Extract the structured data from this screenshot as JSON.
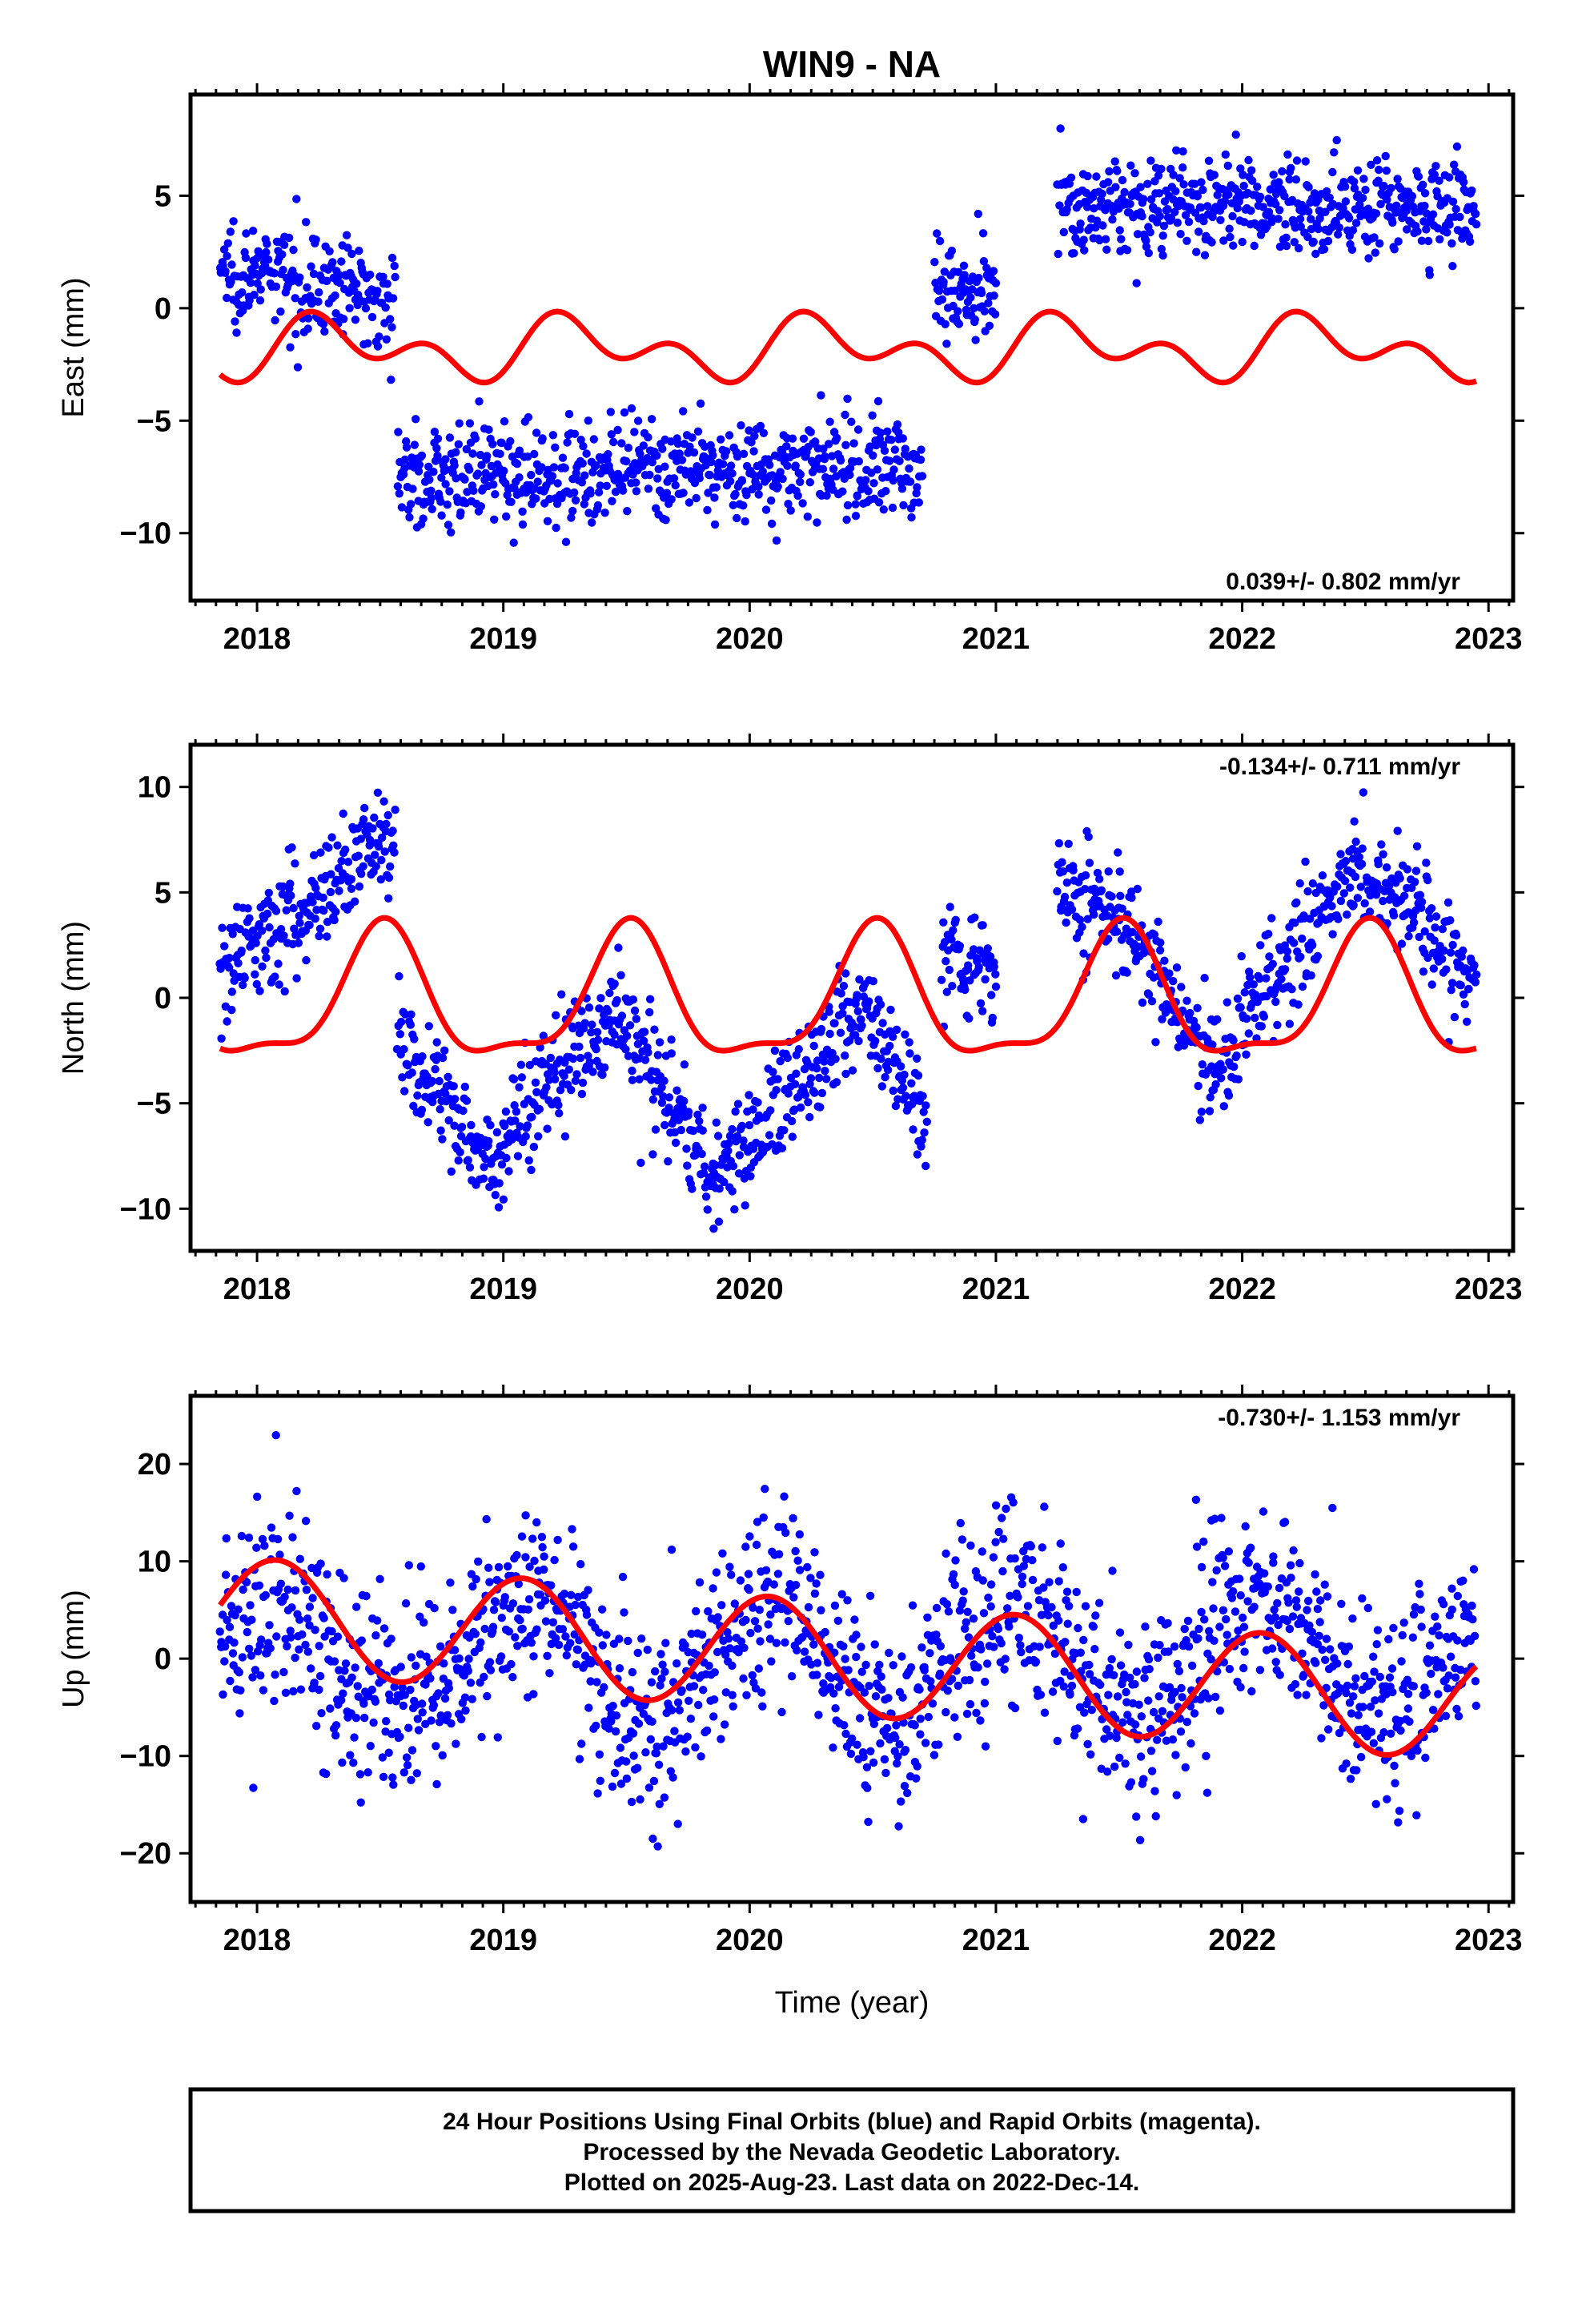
{
  "figure": {
    "title": "WIN9 - NA",
    "xlabel": "Time (year)",
    "caption": [
      "24 Hour Positions Using Final Orbits (blue) and Rapid Orbits (magenta).",
      "Processed by the Nevada Geodetic Laboratory.",
      "Plotted on 2025-Aug-23. Last data on 2022-Dec-14."
    ],
    "colors": {
      "final_orbits": "#0000ff",
      "model_fit": "#ff0000",
      "frame": "#000000"
    }
  },
  "chart_data": [
    {
      "type": "scatter",
      "panel": "east",
      "ylabel": "East (mm)",
      "rate": "0.039+/- 0.802 mm/yr",
      "rate_placement": "bottom-right",
      "xlim": [
        2017.73,
        2023.1
      ],
      "ylim": [
        -13,
        9.5
      ],
      "xticks": [
        2018,
        2019,
        2020,
        2021,
        2022,
        2023
      ],
      "yticks": [
        -10,
        -5,
        0,
        5
      ],
      "grid": false,
      "data_range": [
        2017.85,
        2022.95
      ],
      "segments": [
        {
          "x": [
            2017.85,
            2018.56
          ],
          "y": [
            1.8,
            0.5
          ]
        },
        {
          "x": [
            2018.57,
            2020.7
          ],
          "y": [
            -7.5,
            -7.0
          ]
        },
        {
          "x": [
            2020.75,
            2021.0
          ],
          "y": [
            0.8,
            1.0
          ]
        },
        {
          "x": [
            2021.25,
            2022.95
          ],
          "y": [
            4.5,
            4.5
          ]
        }
      ],
      "seasonal_fit": {
        "mean": -1.8,
        "annual_amp": 0.9,
        "annual_phase": 1.9,
        "semiannual_amp": 0.9,
        "semiannual_phase": 2.5
      },
      "series": [
        {
          "name": "Final Orbits (blue)",
          "role": "daily positions",
          "color": "#0000ff"
        },
        {
          "name": "",
          "role": "seasonal model",
          "color": "#ff0000"
        }
      ]
    },
    {
      "type": "scatter",
      "panel": "north",
      "ylabel": "North (mm)",
      "rate": "-0.134+/- 0.711 mm/yr",
      "rate_placement": "top-right",
      "xlim": [
        2017.73,
        2023.1
      ],
      "ylim": [
        -12,
        12
      ],
      "xticks": [
        2018,
        2019,
        2020,
        2021,
        2022,
        2023
      ],
      "yticks": [
        -10,
        -5,
        0,
        5,
        10
      ],
      "grid": false,
      "data_range": [
        2017.85,
        2022.95
      ],
      "segments": [
        {
          "x": [
            2017.85,
            2018.56
          ],
          "y": [
            1.5,
            8.0
          ]
        },
        {
          "x": [
            2018.57,
            2019.0
          ],
          "y": [
            -2.0,
            -8.5
          ]
        },
        {
          "x": [
            2019.0,
            2019.45
          ],
          "y": [
            -6.5,
            -0.5
          ]
        },
        {
          "x": [
            2019.45,
            2019.85
          ],
          "y": [
            -0.5,
            -8.5
          ]
        },
        {
          "x": [
            2019.85,
            2020.45
          ],
          "y": [
            -8.5,
            -0.5
          ]
        },
        {
          "x": [
            2020.45,
            2020.72
          ],
          "y": [
            -0.5,
            -5.5
          ]
        },
        {
          "x": [
            2020.78,
            2021.0
          ],
          "y": [
            2.5,
            0.5
          ]
        },
        {
          "x": [
            2021.25,
            2021.5
          ],
          "y": [
            5.0,
            4.0
          ]
        },
        {
          "x": [
            2021.5,
            2021.88
          ],
          "y": [
            4.0,
            -3.5
          ]
        },
        {
          "x": [
            2021.88,
            2022.45
          ],
          "y": [
            -3.5,
            6.5
          ]
        },
        {
          "x": [
            2022.45,
            2022.95
          ],
          "y": [
            6.5,
            1.0
          ]
        }
      ],
      "seasonal_fit": {
        "mean": -0.2,
        "annual_amp": 3.0,
        "annual_phase": 3.2,
        "semiannual_amp": 1.0,
        "semiannual_phase": 0.3
      },
      "series": [
        {
          "name": "Final Orbits (blue)",
          "role": "daily positions",
          "color": "#0000ff"
        },
        {
          "name": "",
          "role": "seasonal model",
          "color": "#ff0000"
        }
      ]
    },
    {
      "type": "scatter",
      "panel": "up",
      "ylabel": "Up (mm)",
      "rate": "-0.730+/- 1.153 mm/yr",
      "rate_placement": "top-right",
      "xlim": [
        2017.73,
        2023.1
      ],
      "ylim": [
        -25,
        27
      ],
      "xticks": [
        2018,
        2019,
        2020,
        2021,
        2022,
        2023
      ],
      "yticks": [
        -20,
        -10,
        0,
        10,
        20
      ],
      "grid": false,
      "data_range": [
        2017.85,
        2022.95
      ],
      "segments": [
        {
          "x": [
            2017.85,
            2022.95
          ],
          "y": [
            0.5,
            0.5
          ]
        }
      ],
      "seasonal_fit": {
        "mean": -0.6,
        "annual_amp": 5.8,
        "annual_phase": 0.5,
        "semiannual_amp": 0.0,
        "semiannual_phase": 0.0,
        "start_value": 5.5,
        "end_value": -0.8
      },
      "series": [
        {
          "name": "Final Orbits (blue)",
          "role": "daily positions",
          "color": "#0000ff"
        },
        {
          "name": "",
          "role": "seasonal model",
          "color": "#ff0000"
        }
      ]
    }
  ]
}
